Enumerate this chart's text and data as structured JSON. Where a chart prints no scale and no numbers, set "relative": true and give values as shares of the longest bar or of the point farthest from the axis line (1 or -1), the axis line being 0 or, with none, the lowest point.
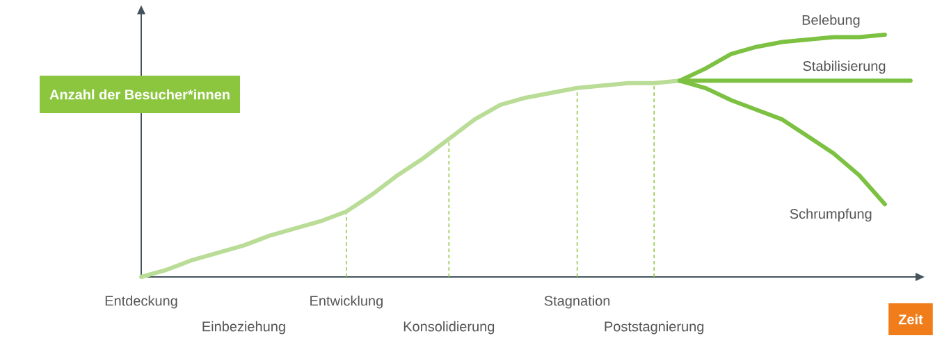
{
  "chart_data": {
    "type": "line",
    "relative": true,
    "xlabel": "Zeit",
    "ylabel": "Anzahl der Besucher*innen",
    "categories": [
      "Entdeckung",
      null,
      null,
      null,
      "Einbeziehung",
      null,
      null,
      null,
      "Entwicklung",
      null,
      null,
      null,
      "Konsolidierung",
      null,
      null,
      null,
      null,
      "Stagnation",
      null,
      null,
      "Poststagnierung",
      null,
      null,
      null,
      null,
      null,
      null,
      null,
      null,
      null,
      null
    ],
    "series": [
      {
        "color": "#b9dc96",
        "values": [
          0,
          0.03,
          0.07,
          0.1,
          0.13,
          0.17,
          0.2,
          0.23,
          0.27,
          0.34,
          0.42,
          0.49,
          0.57,
          0.65,
          0.71,
          0.74,
          0.76,
          0.78,
          0.79,
          0.8,
          0.8,
          0.81,
          null,
          null,
          null,
          null,
          null,
          null,
          null,
          null,
          null
        ]
      },
      {
        "name": "Belebung",
        "color": "#7dc142",
        "values": [
          null,
          null,
          null,
          null,
          null,
          null,
          null,
          null,
          null,
          null,
          null,
          null,
          null,
          null,
          null,
          null,
          null,
          null,
          null,
          null,
          null,
          0.81,
          0.86,
          0.92,
          0.95,
          0.97,
          0.98,
          0.99,
          0.99,
          1,
          null
        ]
      },
      {
        "name": "Stabilisierung",
        "color": "#7dc142",
        "values": [
          null,
          null,
          null,
          null,
          null,
          null,
          null,
          null,
          null,
          null,
          null,
          null,
          null,
          null,
          null,
          null,
          null,
          null,
          null,
          null,
          null,
          0.81,
          0.81,
          0.81,
          0.81,
          0.81,
          0.81,
          0.81,
          0.81,
          0.81,
          0.81
        ]
      },
      {
        "name": "Schrumpfung",
        "color": "#7dc142",
        "values": [
          null,
          null,
          null,
          null,
          null,
          null,
          null,
          null,
          null,
          null,
          null,
          null,
          null,
          null,
          null,
          null,
          null,
          null,
          null,
          null,
          null,
          0.81,
          0.78,
          0.73,
          0.69,
          0.65,
          0.58,
          0.51,
          0.42,
          0.3,
          null
        ]
      }
    ],
    "ref_lines": [
      {
        "axis": "x",
        "value": "Entwicklung",
        "color": "#8cc63f",
        "line_style": "dashed"
      },
      {
        "axis": "x",
        "value": "Konsolidierung",
        "color": "#8cc63f",
        "line_style": "dashed"
      },
      {
        "axis": "x",
        "value": "Stagnation",
        "color": "#8cc63f",
        "line_style": "dashed"
      },
      {
        "axis": "x",
        "value": "Poststagnierung",
        "color": "#8cc63f",
        "line_style": "dashed"
      }
    ]
  }
}
